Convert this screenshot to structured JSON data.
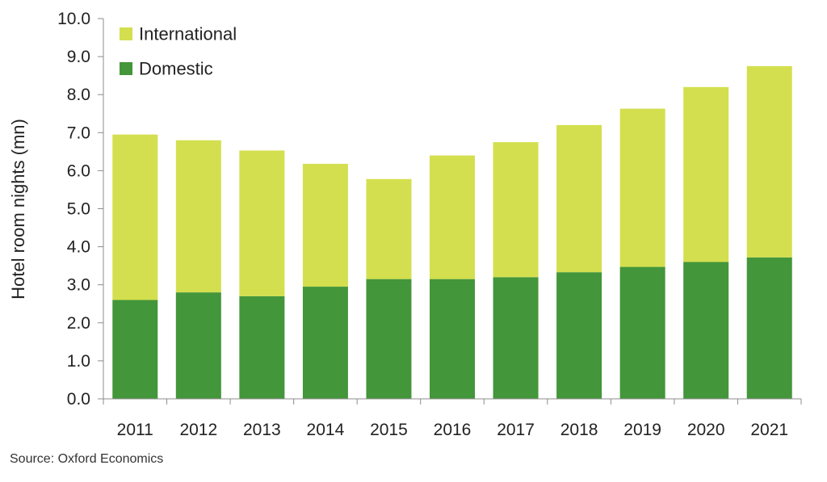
{
  "chart_data": {
    "type": "bar",
    "stacked": true,
    "categories": [
      "2011",
      "2012",
      "2013",
      "2014",
      "2015",
      "2016",
      "2017",
      "2018",
      "2019",
      "2020",
      "2021"
    ],
    "series": [
      {
        "name": "Domestic",
        "color": "#43963a",
        "values": [
          2.6,
          2.8,
          2.7,
          2.95,
          3.15,
          3.15,
          3.2,
          3.33,
          3.47,
          3.6,
          3.72
        ]
      },
      {
        "name": "International",
        "color": "#d3df4e",
        "values": [
          4.35,
          4.0,
          3.83,
          3.23,
          2.63,
          3.25,
          3.55,
          3.87,
          4.16,
          4.6,
          5.03
        ]
      }
    ],
    "legend": {
      "position": "top-left",
      "order": [
        "International",
        "Domestic"
      ]
    },
    "ylabel": "Hotel room nights (mn)",
    "xlabel": "",
    "ylim": [
      0,
      10
    ],
    "yticks": [
      "0.0",
      "1.0",
      "2.0",
      "3.0",
      "4.0",
      "5.0",
      "6.0",
      "7.0",
      "8.0",
      "9.0",
      "10.0"
    ],
    "grid": false
  },
  "source": "Source:  Oxford Economics"
}
